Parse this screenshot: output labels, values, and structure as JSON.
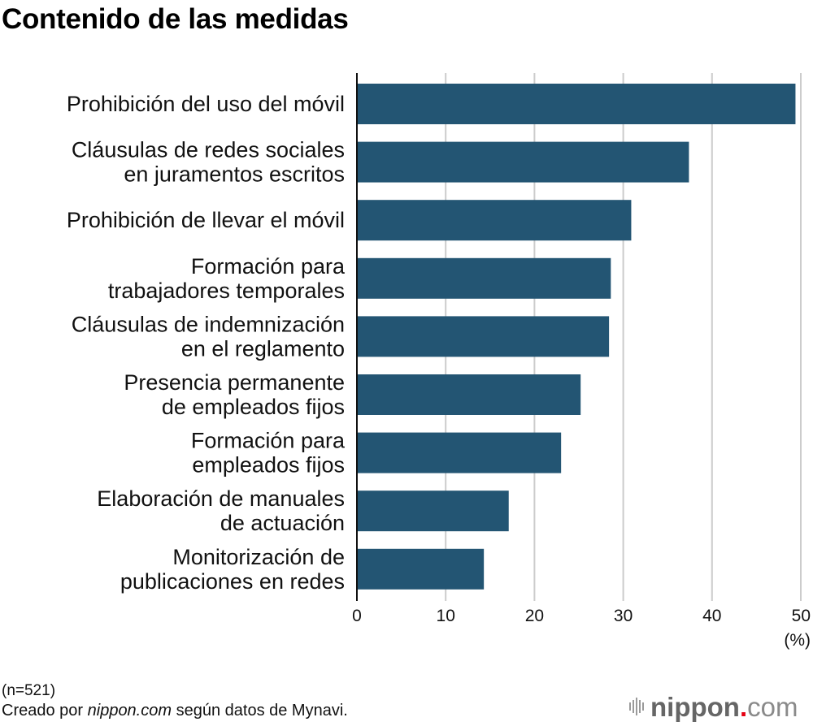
{
  "title": "Contenido de las medidas",
  "chart_data": {
    "type": "bar",
    "orientation": "horizontal",
    "title": "Contenido de las medidas",
    "categories": [
      [
        "Prohibición del uso del móvil"
      ],
      [
        "Cláusulas de redes sociales",
        "en juramentos escritos"
      ],
      [
        "Prohibición de llevar el móvil"
      ],
      [
        "Formación para",
        "trabajadores temporales"
      ],
      [
        "Cláusulas de indemnización",
        "en el reglamento"
      ],
      [
        "Presencia permanente",
        "de empleados fijos"
      ],
      [
        "Formación para",
        "empleados fijos"
      ],
      [
        "Elaboración de manuales",
        "de actuación"
      ],
      [
        "Monitorización de",
        "publicaciones en redes"
      ]
    ],
    "values": [
      49.4,
      37.4,
      30.9,
      28.6,
      28.4,
      25.2,
      23.0,
      17.1,
      14.3
    ],
    "xlabel": "(%)",
    "ylabel": "",
    "xlim": [
      0,
      50
    ],
    "xticks": [
      "0",
      "10",
      "20",
      "30",
      "40",
      "50"
    ],
    "grid": true,
    "bar_color": "#235573",
    "grid_color": "#cccccc"
  },
  "footer": {
    "sample": "(n=521)",
    "source_prefix": "Creado por ",
    "source_italic": "nippon.com",
    "source_suffix": " según datos de Mynavi."
  },
  "logo": {
    "name": "nippon",
    "dot": ".",
    "tld": "com",
    "dot_color": "#e60012"
  }
}
